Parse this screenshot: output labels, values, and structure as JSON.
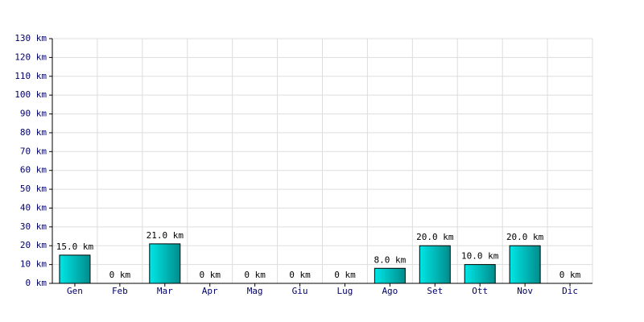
{
  "chart_data": {
    "type": "bar",
    "categories": [
      "Gen",
      "Feb",
      "Mar",
      "Apr",
      "Mag",
      "Giu",
      "Lug",
      "Ago",
      "Set",
      "Ott",
      "Nov",
      "Dic"
    ],
    "values": [
      15,
      0,
      21,
      0,
      0,
      0,
      0,
      8,
      20,
      10,
      20,
      0
    ],
    "value_labels": [
      "15.0 km",
      "0 km",
      "21.0 km",
      "0 km",
      "0 km",
      "0 km",
      "0 km",
      "8.0 km",
      "20.0 km",
      "10.0 km",
      "20.0 km",
      "0 km"
    ],
    "color": "#00c8c8",
    "ylim": [
      0,
      130
    ],
    "yticks": [
      {
        "value": 0,
        "label": "0 km"
      },
      {
        "value": 10,
        "label": "10 km"
      },
      {
        "value": 20,
        "label": "20 km"
      },
      {
        "value": 30,
        "label": "30 km"
      },
      {
        "value": 40,
        "label": "40 km"
      },
      {
        "value": 50,
        "label": "50 km"
      },
      {
        "value": 60,
        "label": "60 km"
      },
      {
        "value": 70,
        "label": "70 km"
      },
      {
        "value": 80,
        "label": "80 km"
      },
      {
        "value": 90,
        "label": "90 km"
      },
      {
        "value": 100,
        "label": "100 km"
      },
      {
        "value": 110,
        "label": "110 km"
      },
      {
        "value": 120,
        "label": "120 km"
      },
      {
        "value": 130,
        "label": "130 km"
      }
    ],
    "grid": true
  }
}
